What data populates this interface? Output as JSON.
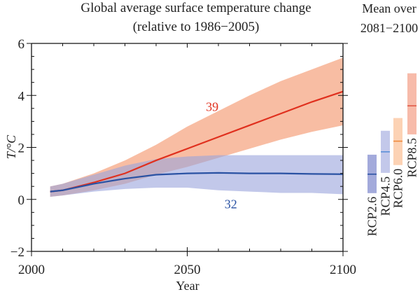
{
  "chart_data": {
    "type": "area",
    "title": "Global average surface temperature change",
    "subtitle": "(relative to 1986−2005)",
    "xlabel": "Year",
    "ylabel": "T/°C",
    "xlim": [
      2000,
      2100
    ],
    "ylim": [
      -2,
      6
    ],
    "x_ticks": [
      "2000",
      "2050",
      "2100"
    ],
    "y_ticks": [
      "−2",
      "0",
      "2",
      "4",
      "6"
    ],
    "grid": false,
    "x": [
      2006,
      2010,
      2020,
      2030,
      2040,
      2050,
      2060,
      2070,
      2080,
      2090,
      2100
    ],
    "series": [
      {
        "label": "39",
        "color": "#e0301e",
        "band_color": "#f7b293",
        "mean": [
          0.3,
          0.35,
          0.65,
          1.0,
          1.5,
          1.95,
          2.4,
          2.85,
          3.3,
          3.75,
          4.15
        ],
        "upper": [
          0.5,
          0.6,
          1.0,
          1.5,
          2.1,
          2.8,
          3.4,
          4.0,
          4.55,
          5.0,
          5.45
        ],
        "lower": [
          0.1,
          0.15,
          0.35,
          0.6,
          0.95,
          1.25,
          1.6,
          1.95,
          2.3,
          2.6,
          2.85
        ],
        "label_pos": [
          2058,
          3.4
        ]
      },
      {
        "label": "32",
        "color": "#2a52a3",
        "band_color": "#9aa4dc",
        "mean": [
          0.3,
          0.35,
          0.6,
          0.8,
          0.95,
          1.0,
          1.02,
          1.0,
          1.0,
          0.98,
          0.97
        ],
        "upper": [
          0.5,
          0.6,
          0.95,
          1.3,
          1.55,
          1.65,
          1.7,
          1.7,
          1.7,
          1.7,
          1.7
        ],
        "lower": [
          0.1,
          0.15,
          0.3,
          0.4,
          0.45,
          0.45,
          0.35,
          0.3,
          0.25,
          0.25,
          0.2
        ],
        "label_pos": [
          2064,
          -0.35
        ]
      }
    ],
    "side_panel": {
      "title_line1": "Mean over",
      "title_line2": "2081−2100",
      "bars": [
        {
          "name": "RCP2.6",
          "mean": 0.97,
          "low": 0.24,
          "high": 1.72,
          "fill": "#a3aadb",
          "line": "#2a52a3"
        },
        {
          "name": "RCP4.5",
          "mean": 1.83,
          "low": 1.02,
          "high": 2.64,
          "fill": "#c3c8ea",
          "line": "#5b8fd8"
        },
        {
          "name": "RCP6.0",
          "mean": 2.24,
          "low": 1.32,
          "high": 3.13,
          "fill": "#fcd2b4",
          "line": "#ee8a3c"
        },
        {
          "name": "RCP8.5",
          "mean": 3.6,
          "low": 2.5,
          "high": 4.85,
          "fill": "#f7bbaa",
          "line": "#e05a48"
        }
      ]
    }
  }
}
